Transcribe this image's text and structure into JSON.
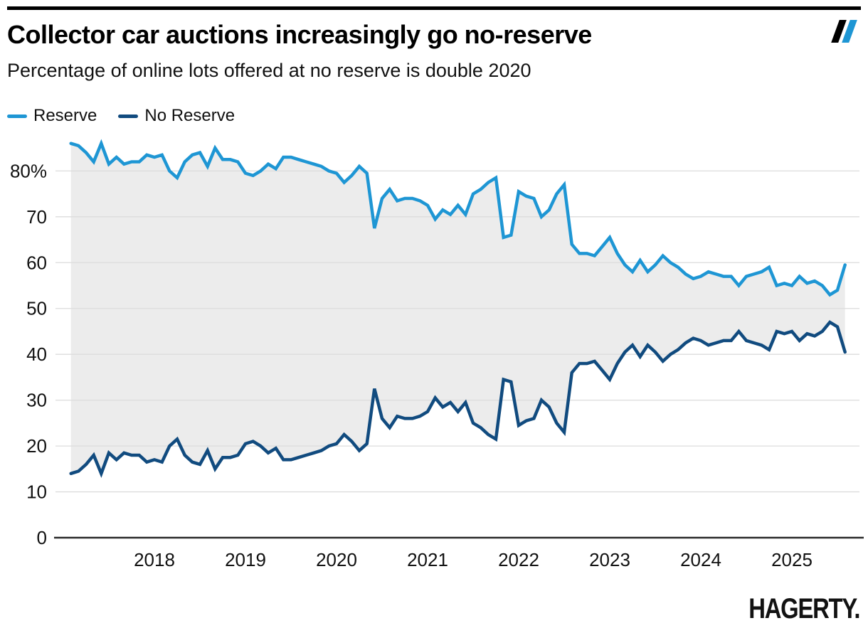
{
  "header": {
    "title": "Collector car auctions increasingly go no-reserve",
    "subtitle": "Percentage of online lots offered at no reserve is double 2020"
  },
  "brand": {
    "mark": "double-slash-icon",
    "mark_black": "#000000",
    "mark_blue": "#1e96d4",
    "footer_logo_text": "HAGERTY."
  },
  "legend": {
    "items": [
      {
        "label": "Reserve",
        "color": "#1e96d4"
      },
      {
        "label": "No Reserve",
        "color": "#114b7f"
      }
    ]
  },
  "chart_data": {
    "type": "line",
    "title": "Collector car auctions increasingly go no-reserve",
    "subtitle": "Percentage of online lots offered at no reserve is double 2020",
    "frequency": "monthly",
    "x_start": "2017-02",
    "x_end": "2025-08",
    "x_tick_labels": [
      "2018",
      "2019",
      "2020",
      "2021",
      "2022",
      "2023",
      "2024",
      "2025"
    ],
    "y_ticks": [
      0,
      10,
      20,
      30,
      40,
      50,
      60,
      70,
      80
    ],
    "y_top_tick_label": "80%",
    "ylim": [
      0,
      88
    ],
    "grid": "horizontal",
    "legend_position": "top-left",
    "band_fill_between_series": true,
    "band_color": "#ececec",
    "gridline_color": "#dcdcdc",
    "axis_line_color": "#2b2b2b",
    "tick_label_color": "#111111",
    "series": [
      {
        "name": "Reserve",
        "color": "#1e96d4",
        "values": [
          86,
          85.5,
          84,
          82,
          86,
          81.5,
          83,
          81.5,
          82,
          82,
          83.5,
          83,
          83.5,
          80,
          78.5,
          82,
          83.5,
          84,
          81,
          85,
          82.5,
          82.5,
          82,
          79.5,
          79,
          80,
          81.5,
          80.5,
          83,
          83,
          82.5,
          82,
          81.5,
          81,
          80,
          79.5,
          77.5,
          79,
          81,
          79.5,
          67.5,
          74,
          76,
          73.5,
          74,
          74,
          73.5,
          72.5,
          69.5,
          71.5,
          70.5,
          72.5,
          70.5,
          75,
          76,
          77.5,
          78.5,
          65.5,
          66,
          75.5,
          74.5,
          74,
          70,
          71.5,
          75,
          77,
          64,
          62,
          62,
          61.5,
          63.5,
          65.5,
          62,
          59.5,
          58,
          60.5,
          58,
          59.5,
          61.5,
          60,
          59,
          57.5,
          56.5,
          57,
          58,
          57.5,
          57,
          57,
          55,
          57,
          57.5,
          58,
          59,
          55,
          55.5,
          55,
          57,
          55.5,
          56,
          55,
          53,
          54,
          59.5
        ]
      },
      {
        "name": "No Reserve",
        "color": "#114b7f",
        "values": [
          14,
          14.5,
          16,
          18,
          14,
          18.5,
          17,
          18.5,
          18,
          18,
          16.5,
          17,
          16.5,
          20,
          21.5,
          18,
          16.5,
          16,
          19,
          15,
          17.5,
          17.5,
          18,
          20.5,
          21,
          20,
          18.5,
          19.5,
          17,
          17,
          17.5,
          18,
          18.5,
          19,
          20,
          20.5,
          22.5,
          21,
          19,
          20.5,
          32.5,
          26,
          24,
          26.5,
          26,
          26,
          26.5,
          27.5,
          30.5,
          28.5,
          29.5,
          27.5,
          29.5,
          25,
          24,
          22.5,
          21.5,
          34.5,
          34,
          24.5,
          25.5,
          26,
          30,
          28.5,
          25,
          23,
          36,
          38,
          38,
          38.5,
          36.5,
          34.5,
          38,
          40.5,
          42,
          39.5,
          42,
          40.5,
          38.5,
          40,
          41,
          42.5,
          43.5,
          43,
          42,
          42.5,
          43,
          43,
          45,
          43,
          42.5,
          42,
          41,
          45,
          44.5,
          45,
          43,
          44.5,
          44,
          45,
          47,
          46,
          40.5
        ]
      }
    ]
  }
}
